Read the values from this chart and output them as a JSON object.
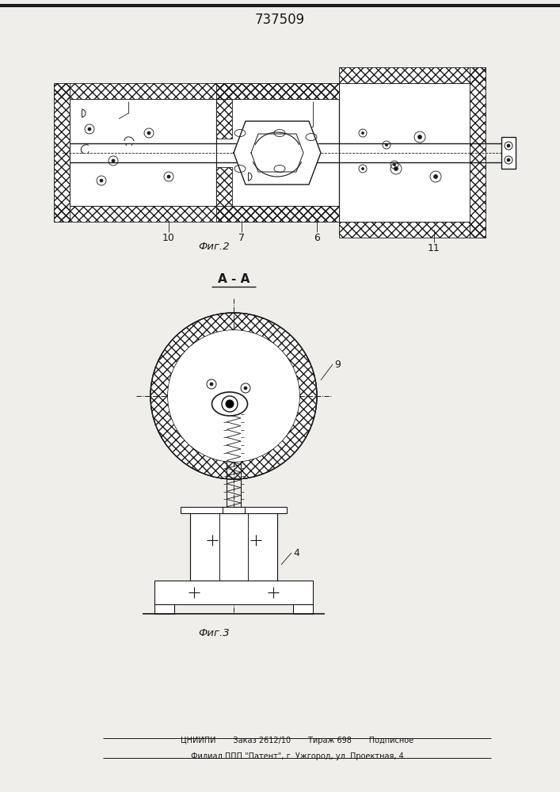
{
  "title": "737509",
  "fig2_label": "Фиг.2",
  "fig3_label": "Фиг.3",
  "section_label": "А - А",
  "footer_line1": "ЦНИИПИ       Заказ 2612/10       Тираж 698       Подписное",
  "footer_line2": "Филиал ППП \"Патент\", г. Ужгород, ул. Проектная, 4",
  "bg_color": "#f0eeea",
  "line_color": "#1a1a1a"
}
